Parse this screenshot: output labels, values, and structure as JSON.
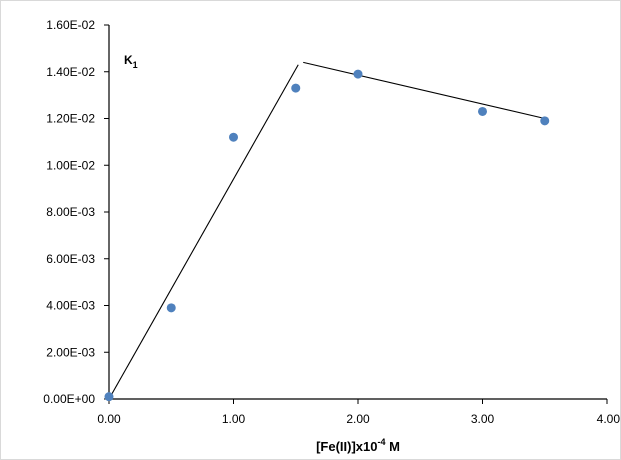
{
  "chart_data": {
    "type": "scatter",
    "xlim": [
      0,
      4
    ],
    "ylim": [
      0,
      0.016
    ],
    "x_ticks": [
      "0.00",
      "1.00",
      "2.00",
      "3.00",
      "4.00"
    ],
    "y_ticks": [
      "0.00E+00",
      "2.00E-03",
      "4.00E-03",
      "6.00E-03",
      "8.00E-03",
      "1.00E-02",
      "1.20E-02",
      "1.40E-02",
      "1.60E-02"
    ],
    "xlabel_main": "[Fe(II)]x10",
    "xlabel_sup": "-4",
    "xlabel_unit": " M",
    "ylabel_main": "K",
    "ylabel_sub": "1",
    "grid": false,
    "marker_color": "#4f81bd",
    "line_color": "#000000",
    "points": [
      {
        "x": 0.0,
        "y": 0.0001
      },
      {
        "x": 0.5,
        "y": 0.0039
      },
      {
        "x": 1.0,
        "y": 0.0112
      },
      {
        "x": 1.5,
        "y": 0.0133
      },
      {
        "x": 2.0,
        "y": 0.0139
      },
      {
        "x": 3.0,
        "y": 0.0123
      },
      {
        "x": 3.5,
        "y": 0.0119
      }
    ],
    "trendlines": [
      {
        "x": [
          0.0,
          1.52
        ],
        "y": [
          0.0,
          0.0143
        ]
      },
      {
        "x": [
          1.56,
          3.5
        ],
        "y": [
          0.0144,
          0.012
        ]
      }
    ]
  }
}
